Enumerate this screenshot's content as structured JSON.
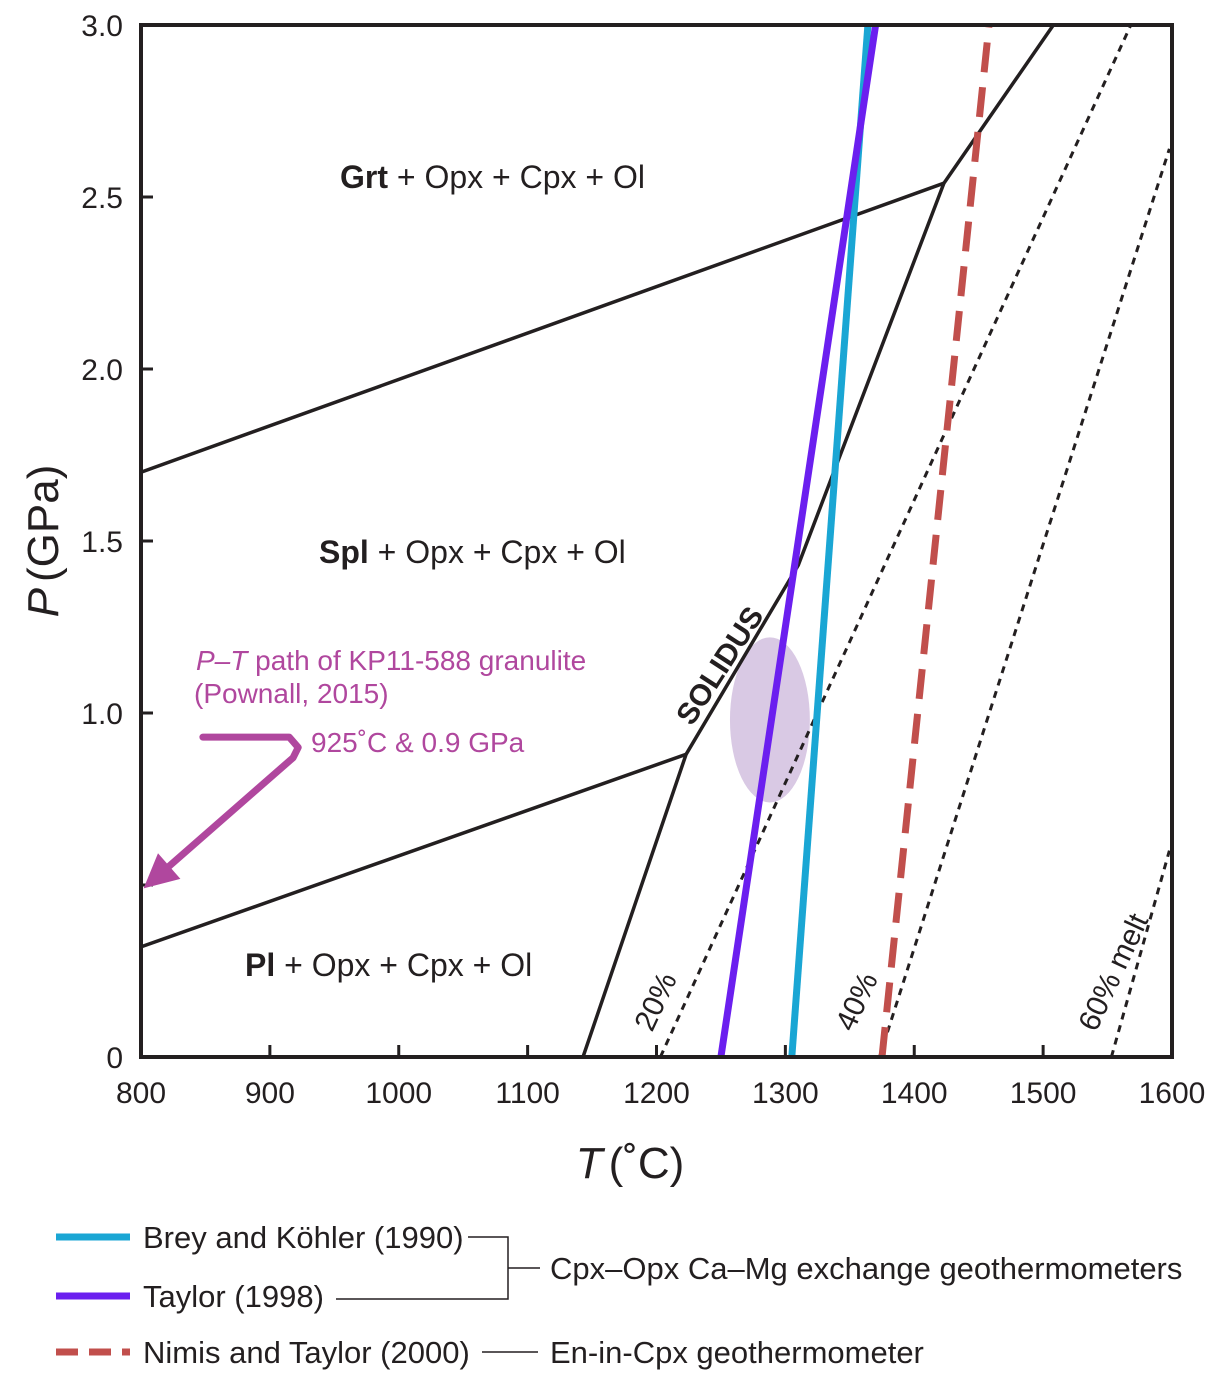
{
  "chart_data": {
    "type": "line",
    "xlabel_symbol": "T",
    "xlabel_unit": "(˚C)",
    "ylabel_symbol": "P",
    "ylabel_unit": "(GPa)",
    "xlim": [
      800,
      1600
    ],
    "ylim": [
      0,
      3.0
    ],
    "x_ticks": [
      800,
      900,
      1000,
      1100,
      1200,
      1300,
      1400,
      1500,
      1600
    ],
    "y_ticks": [
      {
        "value": 0,
        "label": "0"
      },
      {
        "value": 0.5,
        "label": ""
      },
      {
        "value": 1.0,
        "label": "1.0"
      },
      {
        "value": 1.5,
        "label": "1.5"
      },
      {
        "value": 2.0,
        "label": "2.0"
      },
      {
        "value": 2.5,
        "label": "2.5"
      },
      {
        "value": 3.0,
        "label": "3.0"
      }
    ],
    "grid": false,
    "phase_boundaries": [
      {
        "id": "grt-spl",
        "points": [
          [
            800,
            1.7
          ],
          [
            1423,
            2.54
          ]
        ]
      },
      {
        "id": "spl-pl",
        "points": [
          [
            800,
            0.32
          ],
          [
            1223,
            0.88
          ]
        ]
      },
      {
        "id": "solidus",
        "points": [
          [
            1143,
            0
          ],
          [
            1223,
            0.88
          ],
          [
            1310,
            1.43
          ],
          [
            1423,
            2.54
          ],
          [
            1508,
            3.0
          ]
        ]
      }
    ],
    "melt_isopleths": [
      {
        "label": "20%",
        "points": [
          [
            1203,
            0
          ],
          [
            1568,
            3.0
          ]
        ]
      },
      {
        "label": "40%",
        "points": [
          [
            1373,
            0
          ],
          [
            1598,
            2.64
          ]
        ]
      },
      {
        "label": "60% melt",
        "points": [
          [
            1553,
            0
          ],
          [
            1598,
            0.6
          ]
        ]
      }
    ],
    "series": [
      {
        "name": "Brey and Köhler (1990)",
        "color": "#1aa6d4",
        "style": "solid",
        "points": [
          [
            1305,
            0
          ],
          [
            1364,
            3.0
          ]
        ]
      },
      {
        "name": "Taylor (1998)",
        "color": "#6b1fef",
        "style": "solid",
        "points": [
          [
            1250,
            0
          ],
          [
            1370,
            3.0
          ]
        ]
      },
      {
        "name": "Nimis and Taylor (2000)",
        "color": "#c14f4c",
        "style": "dashed",
        "points": [
          [
            1375,
            0
          ],
          [
            1458,
            3.0
          ]
        ]
      }
    ],
    "fields": [
      {
        "bold": "Grt",
        "rest": " + Opx + Cpx + Ol"
      },
      {
        "bold": "Spl",
        "rest": " + Opx + Cpx + Ol"
      },
      {
        "bold": "Pl",
        "rest": " + Opx + Cpx + Ol"
      }
    ],
    "solidus_label": "SOLIDUS",
    "pt_estimate": {
      "t_center": 1288,
      "p_center": 0.98,
      "t_halfwidth": 31,
      "p_halfwidth": 0.24,
      "color": "#d9c9e4"
    },
    "pt_path": {
      "color": "#b0479e",
      "label_italic": "P–T",
      "label_rest": " path of KP11-588 granulite",
      "citation": "(Pownall, 2015)",
      "peak_label": "925˚C & 0.9 GPa",
      "points": [
        [
          848,
          0.93
        ],
        [
          915,
          0.93
        ],
        [
          922,
          0.9
        ],
        [
          918,
          0.87
        ],
        [
          802,
          0.49
        ]
      ]
    },
    "legend_groups": [
      {
        "label": "Cpx–Opx Ca–Mg exchange geothermometers"
      },
      {
        "label": "En-in-Cpx geothermometer"
      }
    ]
  }
}
